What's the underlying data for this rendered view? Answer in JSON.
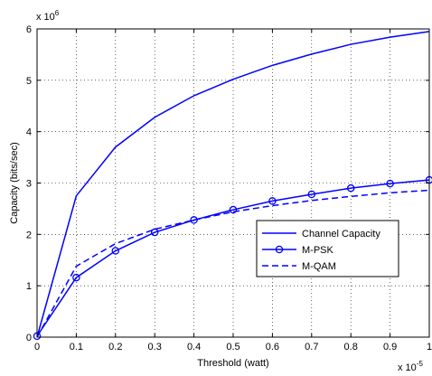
{
  "chart_data": {
    "type": "line",
    "xlabel": "Threshold (watt)",
    "ylabel": "Capacity (bits/sec)",
    "x_multiplier_label": "x 10",
    "x_multiplier_exp": "-5",
    "y_multiplier_label": "x 10",
    "y_multiplier_exp": "6",
    "xlim": [
      0,
      1
    ],
    "ylim": [
      0,
      6
    ],
    "x_ticks": [
      "0",
      "0.1",
      "0.2",
      "0.3",
      "0.4",
      "0.5",
      "0.6",
      "0.7",
      "0.8",
      "0.9",
      "1"
    ],
    "y_ticks": [
      "0",
      "1",
      "2",
      "3",
      "4",
      "5",
      "6"
    ],
    "grid": true,
    "legend_position": "lower-right",
    "x": [
      0,
      0.1,
      0.2,
      0.3,
      0.4,
      0.5,
      0.6,
      0.7,
      0.8,
      0.9,
      1.0
    ],
    "series": [
      {
        "name": "Channel Capacity",
        "style": "solid",
        "marker": "none",
        "color": "#0000ff",
        "values": [
          0,
          2.75,
          3.7,
          4.28,
          4.7,
          5.02,
          5.29,
          5.51,
          5.7,
          5.84,
          5.95
        ]
      },
      {
        "name": "M-PSK",
        "style": "solid",
        "marker": "circle",
        "color": "#0000ff",
        "values": [
          0.02,
          1.16,
          1.68,
          2.04,
          2.28,
          2.48,
          2.65,
          2.78,
          2.9,
          2.99,
          3.06
        ]
      },
      {
        "name": "M-QAM",
        "style": "dashed",
        "marker": "none",
        "color": "#0000ff",
        "values": [
          0,
          1.38,
          1.82,
          2.1,
          2.28,
          2.44,
          2.56,
          2.66,
          2.74,
          2.81,
          2.86
        ]
      }
    ]
  }
}
